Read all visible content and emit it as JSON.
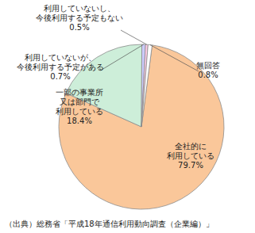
{
  "chart_data": {
    "type": "pie",
    "categories": [
      "全社的に\n利用している",
      "一部の事業所\n又は部門で\n利用している",
      "利用していないが、\n今後利用する予定がある",
      "利用していないし、\n今後利用する予定もない",
      "無回答"
    ],
    "values": [
      79.7,
      18.4,
      0.7,
      0.5,
      0.8
    ],
    "value_labels": [
      "79.7%",
      "18.4%",
      "0.7%",
      "0.5%",
      "0.8%"
    ],
    "colors": [
      "#fac79a",
      "#cdeed9",
      "#ccccff",
      "#ffcce6",
      "#ffffff"
    ],
    "data_labels": true,
    "annotations": [
      "（出典）総務省「平成18年通信利用動向調査（企業編）」"
    ]
  }
}
